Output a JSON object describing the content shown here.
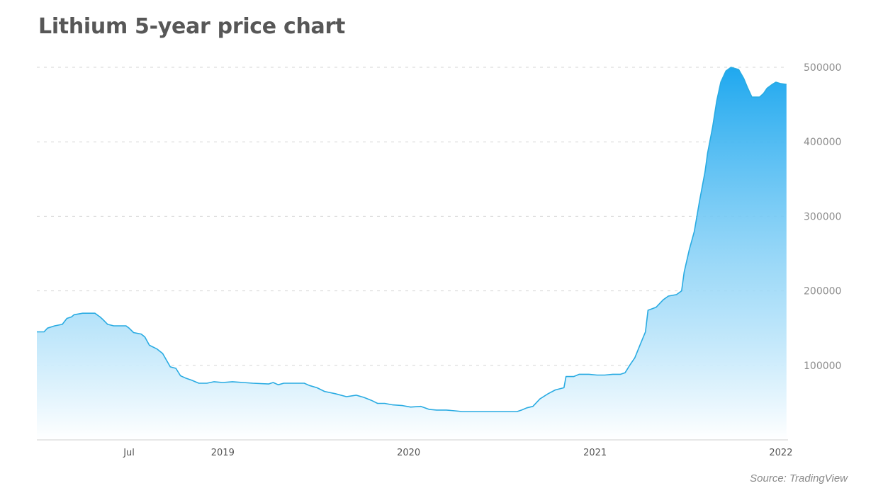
{
  "title": "Lithium 5-year price chart",
  "source": "Source: TradingView",
  "chart_data": {
    "type": "area",
    "title": "Lithium 5-year price chart",
    "xlabel": "",
    "ylabel": "",
    "ylim": [
      0,
      500000
    ],
    "xlim": [
      "2018-01-01",
      "2022-01-15"
    ],
    "grid": true,
    "y_ticks": [
      {
        "value": 100000,
        "label": "100000"
      },
      {
        "value": 200000,
        "label": "200000"
      },
      {
        "value": 300000,
        "label": "300000"
      },
      {
        "value": 400000,
        "label": "400000"
      },
      {
        "value": 500000,
        "label": "500000"
      }
    ],
    "x_ticks": [
      {
        "date": "2018-07-01",
        "label": "Jul"
      },
      {
        "date": "2019-01-01",
        "label": "2019"
      },
      {
        "date": "2020-01-01",
        "label": "2020"
      },
      {
        "date": "2021-01-01",
        "label": "2021"
      },
      {
        "date": "2022-01-01",
        "label": "2022"
      }
    ],
    "colors": {
      "line": "#29abe2",
      "fill_top": "#1fa8ef",
      "fill_bottom": "#ffffff",
      "grid": "#d6d6d6"
    },
    "series": [
      {
        "points": [
          [
            "2018-01-01",
            145000
          ],
          [
            "2018-01-15",
            145000
          ],
          [
            "2018-01-22",
            150000
          ],
          [
            "2018-02-05",
            153000
          ],
          [
            "2018-02-20",
            155000
          ],
          [
            "2018-03-01",
            163000
          ],
          [
            "2018-03-10",
            165000
          ],
          [
            "2018-03-15",
            168000
          ],
          [
            "2018-04-01",
            170000
          ],
          [
            "2018-04-25",
            170000
          ],
          [
            "2018-05-05",
            165000
          ],
          [
            "2018-05-10",
            162000
          ],
          [
            "2018-05-20",
            155000
          ],
          [
            "2018-06-01",
            153000
          ],
          [
            "2018-06-25",
            153000
          ],
          [
            "2018-07-01",
            150000
          ],
          [
            "2018-07-10",
            144000
          ],
          [
            "2018-07-25",
            142000
          ],
          [
            "2018-08-01",
            138000
          ],
          [
            "2018-08-10",
            127000
          ],
          [
            "2018-08-25",
            122000
          ],
          [
            "2018-09-05",
            116000
          ],
          [
            "2018-09-20",
            98000
          ],
          [
            "2018-10-01",
            96000
          ],
          [
            "2018-10-10",
            86000
          ],
          [
            "2018-10-20",
            83000
          ],
          [
            "2018-11-01",
            80000
          ],
          [
            "2018-11-15",
            76000
          ],
          [
            "2018-12-01",
            76000
          ],
          [
            "2018-12-15",
            78000
          ],
          [
            "2019-01-01",
            77000
          ],
          [
            "2019-01-20",
            78000
          ],
          [
            "2019-02-10",
            77000
          ],
          [
            "2019-03-01",
            76000
          ],
          [
            "2019-04-01",
            75000
          ],
          [
            "2019-04-10",
            77000
          ],
          [
            "2019-04-20",
            74000
          ],
          [
            "2019-05-01",
            76000
          ],
          [
            "2019-05-20",
            76000
          ],
          [
            "2019-06-10",
            76000
          ],
          [
            "2019-06-20",
            73000
          ],
          [
            "2019-07-05",
            70000
          ],
          [
            "2019-07-20",
            65000
          ],
          [
            "2019-08-10",
            62000
          ],
          [
            "2019-09-01",
            58000
          ],
          [
            "2019-09-20",
            60000
          ],
          [
            "2019-10-05",
            57000
          ],
          [
            "2019-10-20",
            53000
          ],
          [
            "2019-11-01",
            49000
          ],
          [
            "2019-11-15",
            49000
          ],
          [
            "2019-12-01",
            47000
          ],
          [
            "2019-12-20",
            46000
          ],
          [
            "2020-01-05",
            44000
          ],
          [
            "2020-01-25",
            45000
          ],
          [
            "2020-02-10",
            41000
          ],
          [
            "2020-02-25",
            40000
          ],
          [
            "2020-03-15",
            40000
          ],
          [
            "2020-04-01",
            39000
          ],
          [
            "2020-04-15",
            38000
          ],
          [
            "2020-05-01",
            38000
          ],
          [
            "2020-05-20",
            38000
          ],
          [
            "2020-06-01",
            38000
          ],
          [
            "2020-06-20",
            38000
          ],
          [
            "2020-07-01",
            38000
          ],
          [
            "2020-07-20",
            38000
          ],
          [
            "2020-08-01",
            38000
          ],
          [
            "2020-08-10",
            40000
          ],
          [
            "2020-08-20",
            43000
          ],
          [
            "2020-09-01",
            45000
          ],
          [
            "2020-09-15",
            55000
          ],
          [
            "2020-10-01",
            62000
          ],
          [
            "2020-10-15",
            67000
          ],
          [
            "2020-11-01",
            70000
          ],
          [
            "2020-11-05",
            85000
          ],
          [
            "2020-11-20",
            85000
          ],
          [
            "2020-12-01",
            88000
          ],
          [
            "2020-12-20",
            88000
          ],
          [
            "2021-01-05",
            87000
          ],
          [
            "2021-01-20",
            87000
          ],
          [
            "2021-02-05",
            88000
          ],
          [
            "2021-02-20",
            88000
          ],
          [
            "2021-03-01",
            90000
          ],
          [
            "2021-03-10",
            100000
          ],
          [
            "2021-03-20",
            110000
          ],
          [
            "2021-04-01",
            130000
          ],
          [
            "2021-04-10",
            145000
          ],
          [
            "2021-04-15",
            174000
          ],
          [
            "2021-05-01",
            178000
          ],
          [
            "2021-05-15",
            188000
          ],
          [
            "2021-05-25",
            193000
          ],
          [
            "2021-06-10",
            195000
          ],
          [
            "2021-06-20",
            200000
          ],
          [
            "2021-06-25",
            225000
          ],
          [
            "2021-07-05",
            255000
          ],
          [
            "2021-07-15",
            280000
          ],
          [
            "2021-07-25",
            320000
          ],
          [
            "2021-08-05",
            360000
          ],
          [
            "2021-08-10",
            385000
          ],
          [
            "2021-08-20",
            420000
          ],
          [
            "2021-08-28",
            455000
          ],
          [
            "2021-09-05",
            480000
          ],
          [
            "2021-09-15",
            495000
          ],
          [
            "2021-09-25",
            500000
          ],
          [
            "2021-10-10",
            497000
          ],
          [
            "2021-10-20",
            485000
          ],
          [
            "2021-10-28",
            472000
          ],
          [
            "2021-11-05",
            460000
          ],
          [
            "2021-11-20",
            460000
          ],
          [
            "2021-11-28",
            465000
          ],
          [
            "2021-12-05",
            472000
          ],
          [
            "2021-12-15",
            477000
          ],
          [
            "2021-12-22",
            480000
          ],
          [
            "2022-01-01",
            478000
          ],
          [
            "2022-01-12",
            477000
          ]
        ]
      }
    ]
  }
}
